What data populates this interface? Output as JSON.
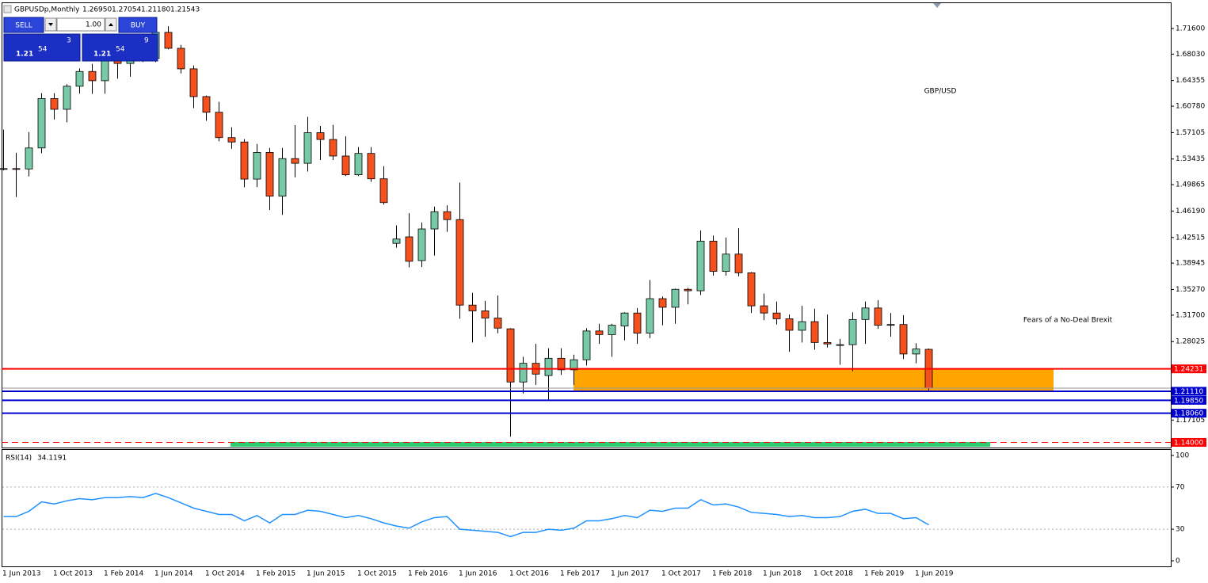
{
  "header": {
    "symbol": "GBPUSDp,Monthly",
    "quotes": [
      "1.26950",
      "1.27054",
      "1.21180",
      "1.21543"
    ]
  },
  "trade_panel": {
    "sell": "SELL",
    "buy": "BUY",
    "lots": "1.00",
    "sell_price": {
      "big": "1.21",
      "pips": "54",
      "frac": "3"
    },
    "buy_price": {
      "big": "1.21",
      "pips": "54",
      "frac": "9"
    }
  },
  "chart_data": [
    {
      "type": "candlestick",
      "title": "GBP/USD",
      "annotation": "Fears of a No-Deal Brexit",
      "up_color": "#77c9a8",
      "down_color": "#f4511e",
      "categories": [
        "1 Jun 2013",
        null,
        null,
        null,
        "1 Oct 2013",
        null,
        null,
        null,
        "1 Feb 2014",
        null,
        null,
        null,
        "1 Jun 2014",
        null,
        null,
        null,
        "1 Oct 2014",
        null,
        null,
        null,
        "1 Feb 2015",
        null,
        null,
        null,
        "1 Jun 2015",
        null,
        null,
        null,
        "1 Oct 2015",
        null,
        null,
        null,
        "1 Feb 2016",
        null,
        null,
        null,
        "1 Jun 2016",
        null,
        null,
        null,
        "1 Oct 2016",
        null,
        null,
        null,
        "1 Feb 2017",
        null,
        null,
        null,
        "1 Jun 2017",
        null,
        null,
        null,
        "1 Oct 2017",
        null,
        null,
        null,
        "1 Feb 2018",
        null,
        null,
        null,
        "1 Jun 2018",
        null,
        null,
        null,
        "1 Oct 2018",
        null,
        null,
        null,
        "1 Feb 2019",
        null,
        null,
        null,
        "1 Jun 2019",
        null
      ],
      "open": [
        1.52,
        1.521,
        1.5205,
        1.5497,
        1.6185,
        1.6035,
        1.6356,
        1.6561,
        1.6433,
        1.6747,
        1.6673,
        1.6819,
        1.6744,
        1.7106,
        1.6884,
        1.6598,
        1.6212,
        1.5994,
        1.5641,
        1.558,
        1.5064,
        1.5435,
        1.4826,
        1.5349,
        1.5284,
        1.571,
        1.5615,
        1.5385,
        1.5124,
        1.5421,
        1.5068,
        1.417,
        1.426,
        1.393,
        1.437,
        1.461,
        1.45,
        1.331,
        1.323,
        1.313,
        1.298,
        1.224,
        1.25,
        1.233,
        1.257,
        1.241,
        1.255,
        1.295,
        1.29,
        1.302,
        1.32,
        1.292,
        1.34,
        1.328,
        1.353,
        1.351,
        1.42,
        1.378,
        1.402,
        1.376,
        1.33,
        1.32,
        1.312,
        1.296,
        1.308,
        1.279,
        1.275,
        1.276,
        1.311,
        1.327,
        1.303,
        1.304,
        1.263,
        1.2695
      ],
      "high": [
        1.5752,
        1.543,
        1.5718,
        1.6259,
        1.626,
        1.6385,
        1.6604,
        1.6668,
        1.6823,
        1.6822,
        1.6996,
        1.6996,
        1.7106,
        1.7191,
        1.693,
        1.6644,
        1.6227,
        1.614,
        1.5786,
        1.562,
        1.5552,
        1.5498,
        1.5498,
        1.5815,
        1.593,
        1.5803,
        1.5819,
        1.5659,
        1.5509,
        1.5508,
        1.5242,
        1.442,
        1.459,
        1.446,
        1.468,
        1.47,
        1.5015,
        1.348,
        1.337,
        1.3445,
        1.299,
        1.259,
        1.277,
        1.271,
        1.271,
        1.262,
        1.299,
        1.305,
        1.305,
        1.321,
        1.327,
        1.366,
        1.343,
        1.354,
        1.355,
        1.435,
        1.428,
        1.425,
        1.438,
        1.377,
        1.347,
        1.336,
        1.318,
        1.33,
        1.326,
        1.318,
        1.284,
        1.321,
        1.336,
        1.338,
        1.32,
        1.317,
        1.278,
        1.27054
      ],
      "low": [
        1.5185,
        1.4814,
        1.51,
        1.5425,
        1.5893,
        1.5855,
        1.6255,
        1.625,
        1.6252,
        1.646,
        1.6488,
        1.6692,
        1.6692,
        1.687,
        1.6535,
        1.6052,
        1.5875,
        1.559,
        1.5486,
        1.4951,
        1.4952,
        1.4634,
        1.4566,
        1.5088,
        1.517,
        1.533,
        1.533,
        1.5107,
        1.5107,
        1.5026,
        1.471,
        1.411,
        1.3836,
        1.384,
        1.4,
        1.433,
        1.312,
        1.279,
        1.287,
        1.292,
        1.148,
        1.208,
        1.22,
        1.199,
        1.234,
        1.22,
        1.247,
        1.277,
        1.259,
        1.282,
        1.277,
        1.285,
        1.303,
        1.305,
        1.332,
        1.345,
        1.372,
        1.372,
        1.371,
        1.32,
        1.31,
        1.304,
        1.266,
        1.279,
        1.269,
        1.272,
        1.248,
        1.239,
        1.277,
        1.298,
        1.287,
        1.256,
        1.25,
        1.2118
      ],
      "close": [
        1.521,
        1.5205,
        1.5497,
        1.6185,
        1.6035,
        1.6356,
        1.6561,
        1.6433,
        1.6747,
        1.6673,
        1.6819,
        1.6744,
        1.7106,
        1.6884,
        1.6598,
        1.6212,
        1.5994,
        1.5641,
        1.558,
        1.5064,
        1.5435,
        1.4826,
        1.5349,
        1.5284,
        1.571,
        1.5615,
        1.5385,
        1.5124,
        1.5421,
        1.5068,
        1.4737,
        1.423,
        1.392,
        1.437,
        1.461,
        1.45,
        1.331,
        1.323,
        1.313,
        1.299,
        1.224,
        1.25,
        1.235,
        1.257,
        1.241,
        1.255,
        1.295,
        1.29,
        1.303,
        1.32,
        1.292,
        1.34,
        1.328,
        1.353,
        1.351,
        1.42,
        1.378,
        1.402,
        1.376,
        1.33,
        1.32,
        1.312,
        1.296,
        1.308,
        1.279,
        1.277,
        1.276,
        1.311,
        1.327,
        1.303,
        1.304,
        1.263,
        1.27,
        1.21543
      ],
      "ylim": [
        1.1328,
        1.7512
      ],
      "yticks": [
        {
          "value": 1.716,
          "label": "1.71600"
        },
        {
          "value": 1.6803,
          "label": "1.68030"
        },
        1.64355,
        {
          "value": 1.6078,
          "label": "1.60780"
        },
        1.57105,
        1.53435,
        1.49865,
        {
          "value": 1.4619,
          "label": "1.46190"
        },
        1.42515,
        1.38945,
        {
          "value": 1.3527,
          "label": "1.35270"
        },
        {
          "value": 1.317,
          "label": "1.31700"
        },
        1.28025,
        1.17105,
        1.13935
      ],
      "levels": [
        {
          "value": 1.24231,
          "label": "1.24231",
          "color": "#ff0000",
          "dashed": false
        },
        {
          "value": 1.2111,
          "label": "1.21110",
          "color": "#0000cd",
          "dashed": false
        },
        {
          "value": 1.1985,
          "label": "1.19850",
          "color": "#0000cd",
          "dashed": false
        },
        {
          "value": 1.1806,
          "label": "1.18060",
          "color": "#0000cd",
          "dashed": false
        },
        {
          "value": 1.14,
          "label": "1.14000",
          "color": "#ff0000",
          "dashed": true
        }
      ],
      "zone": {
        "from": 1.2111,
        "to": 1.24231,
        "color": "#ffa500"
      }
    },
    {
      "type": "line",
      "title": "RSI(14)",
      "color": "#1e90ff",
      "values": [
        42,
        42,
        47,
        56,
        54,
        57,
        59,
        58,
        60,
        60,
        61,
        60,
        64,
        60,
        55,
        50,
        47,
        44,
        44,
        38,
        43,
        36,
        44,
        44,
        48,
        47,
        44,
        41,
        43,
        40,
        36,
        33,
        31,
        37,
        41,
        42,
        30,
        29,
        28,
        27,
        23,
        27,
        27,
        30,
        29,
        31,
        38,
        38,
        40,
        43,
        41,
        48,
        47,
        50,
        50,
        58,
        53,
        54,
        51,
        46,
        45,
        44,
        42,
        43,
        41,
        41,
        42,
        47,
        49,
        45,
        45,
        40,
        41,
        34.1191
      ],
      "ylim": [
        0,
        100
      ],
      "yticks": [
        0,
        30,
        70,
        100
      ]
    }
  ]
}
